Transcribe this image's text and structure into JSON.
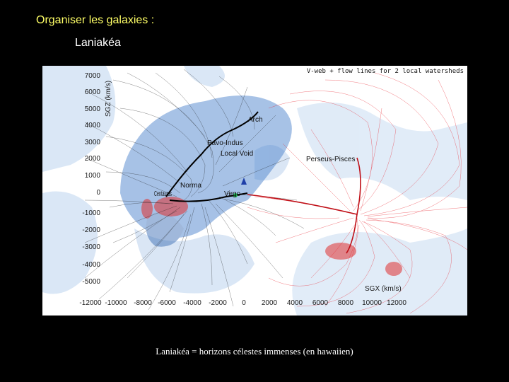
{
  "slide": {
    "title": "Organiser les galaxies :",
    "subtitle": "Laniakéa",
    "caption": "Laniakéa = horizons célestes immenses (en hawaiien)"
  },
  "figure": {
    "header": "V-web + flow lines for 2 local watersheds",
    "y_axis_label": "SGZ (km/s)",
    "x_axis_label": "SGX (km/s)",
    "y_ticks": [
      "7000",
      "6000",
      "5000",
      "4000",
      "3000",
      "2000",
      "1000",
      "0",
      "-1000",
      "-2000",
      "-3000",
      "-4000",
      "-5000"
    ],
    "x_ticks": [
      "-12000",
      "-10000",
      "-8000",
      "-6000",
      "-4000",
      "-2000",
      "0",
      "2000",
      "4000",
      "6000",
      "8000",
      "10000",
      "12000"
    ],
    "structures": [
      "Arch",
      "Pavo-Indus",
      "Local Void",
      "Perseus-Pisces",
      "Norma",
      "Centaurus",
      "Virgo"
    ],
    "colors": {
      "laniakea_flow": "#1a1a1a",
      "perseus_flow": "#e8202a",
      "blue_region": "#3b78c8",
      "red_region": "#e03030",
      "void_region": "#bcd3ee"
    }
  }
}
